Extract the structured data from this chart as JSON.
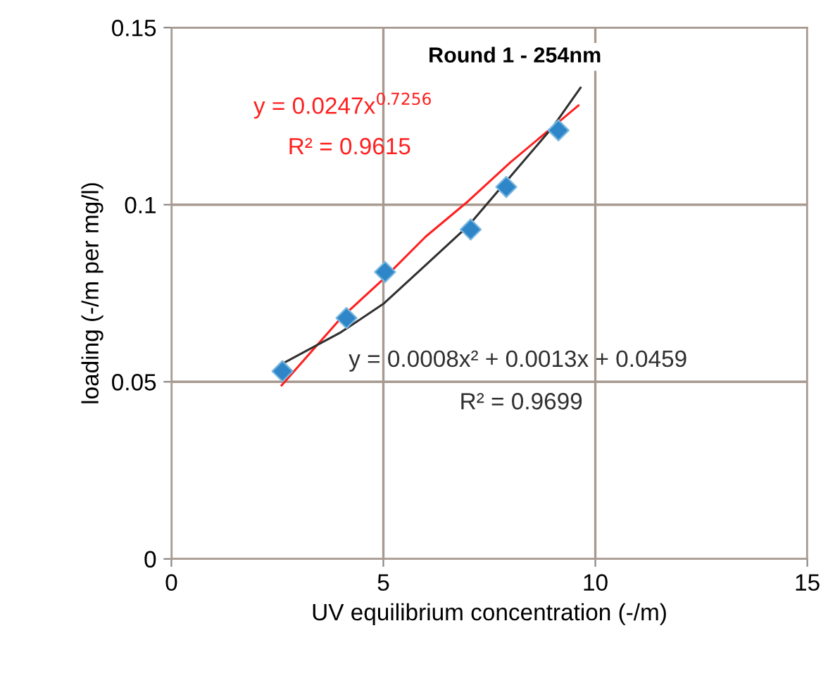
{
  "chart_data": {
    "type": "scatter",
    "title": "Round 1 - 254nm",
    "xlabel": "UV equilibrium concentration (-/m)",
    "ylabel": "loading (-/m per mg/l)",
    "series": [
      {
        "color": "#2e86c8",
        "marker": "diamond",
        "x": [
          2.62,
          4.13,
          5.04,
          7.06,
          7.9,
          9.13
        ],
        "values": [
          0.053,
          0.068,
          0.081,
          0.093,
          0.105,
          0.121
        ]
      },
      {
        "type": "line",
        "color": "#ff2020",
        "marker": "none",
        "x": [
          2.6,
          4,
          5,
          6,
          7,
          8,
          9,
          9.6
        ],
        "values": [
          0.049,
          0.068,
          0.079,
          0.091,
          0.101,
          0.112,
          0.122,
          0.128
        ]
      },
      {
        "type": "line",
        "color": "#303030",
        "marker": "none",
        "x": [
          2.6,
          4,
          5,
          6,
          7,
          8,
          9,
          9.65
        ],
        "values": [
          0.055,
          0.064,
          0.072,
          0.083,
          0.094,
          0.108,
          0.122,
          0.133
        ]
      }
    ],
    "annotations": [
      "y = 0.0247x$^{0.7256}$",
      "R² = 0.9615",
      "y = 0.0008x² + 0.0013x + 0.0459",
      "R² = 0.9699"
    ],
    "xlim": [
      0,
      15
    ],
    "ylim": [
      0,
      0.15
    ],
    "xticks": [
      0,
      5,
      10,
      15
    ],
    "yticks": [
      0,
      0.05,
      0.1,
      0.15
    ],
    "grid": true,
    "legend": false
  }
}
